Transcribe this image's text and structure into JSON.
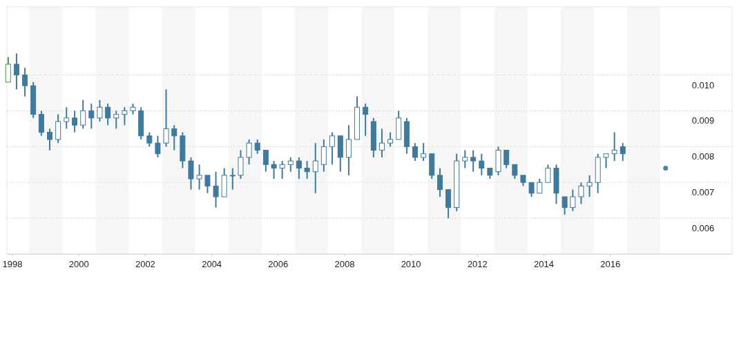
{
  "chart_data": {
    "type": "candlestick",
    "xlim": [
      "1998-05-01",
      "2020-03-01"
    ],
    "ylim": [
      0.005,
      0.0119
    ],
    "xticks": [
      {
        "value": "1998-07-01",
        "label": "1998"
      },
      {
        "value": "2000-07-01",
        "label": "2000"
      },
      {
        "value": "2002-07-01",
        "label": "2002"
      },
      {
        "value": "2004-07-01",
        "label": "2004"
      },
      {
        "value": "2006-07-01",
        "label": "2006"
      },
      {
        "value": "2008-07-01",
        "label": "2008"
      },
      {
        "value": "2010-07-01",
        "label": "2010"
      },
      {
        "value": "2012-07-01",
        "label": "2012"
      },
      {
        "value": "2014-07-01",
        "label": "2014"
      },
      {
        "value": "2016-07-01",
        "label": "2016"
      }
    ],
    "yticks": [
      0.006,
      0.007,
      0.008,
      0.009,
      {
        "value": 0.01,
        "label": "0.010"
      }
    ],
    "grid": "y",
    "marker": "circle",
    "bands": [
      {
        "axis": "x",
        "from": "1999-01-01",
        "to": "2000-01-01",
        "color": "#f6f6f6"
      },
      {
        "axis": "x",
        "from": "2001-01-01",
        "to": "2002-01-01",
        "color": "#f6f6f6"
      },
      {
        "axis": "x",
        "from": "2003-01-01",
        "to": "2004-01-01",
        "color": "#f6f6f6"
      },
      {
        "axis": "x",
        "from": "2005-01-01",
        "to": "2006-01-01",
        "color": "#f6f6f6"
      },
      {
        "axis": "x",
        "from": "2007-01-01",
        "to": "2008-01-01",
        "color": "#f6f6f6"
      },
      {
        "axis": "x",
        "from": "2009-01-01",
        "to": "2010-01-01",
        "color": "#f6f6f6"
      },
      {
        "axis": "x",
        "from": "2011-01-01",
        "to": "2012-01-01",
        "color": "#f6f6f6"
      },
      {
        "axis": "x",
        "from": "2013-01-01",
        "to": "2014-01-01",
        "color": "#f6f6f6"
      },
      {
        "axis": "x",
        "from": "2015-01-01",
        "to": "2016-01-01",
        "color": "#f6f6f6"
      },
      {
        "axis": "x",
        "from": "2017-01-01",
        "to": "2018-01-01",
        "color": "#f6f6f6"
      }
    ],
    "x": [
      "1998-05-15",
      "1998-08-15",
      "1998-11-15",
      "1999-02-15",
      "1999-05-15",
      "1999-08-15",
      "1999-11-15",
      "2000-02-15",
      "2000-05-15",
      "2000-08-15",
      "2000-11-15",
      "2001-02-15",
      "2001-05-15",
      "2001-08-15",
      "2001-11-15",
      "2002-02-15",
      "2002-05-15",
      "2002-08-15",
      "2002-11-15",
      "2003-02-15",
      "2003-05-15",
      "2003-08-15",
      "2003-11-15",
      "2004-02-15",
      "2004-05-15",
      "2004-08-15",
      "2004-11-15",
      "2005-02-15",
      "2005-05-15",
      "2005-08-15",
      "2005-11-15",
      "2006-02-15",
      "2006-05-15",
      "2006-08-15",
      "2006-11-15",
      "2007-02-15",
      "2007-05-15",
      "2007-08-15",
      "2007-11-15",
      "2008-02-15",
      "2008-05-15",
      "2008-08-15",
      "2008-11-15",
      "2009-02-15",
      "2009-05-15",
      "2009-08-15",
      "2009-11-15",
      "2010-02-15",
      "2010-05-15",
      "2010-08-15",
      "2010-11-15",
      "2011-02-15",
      "2011-05-15",
      "2011-08-15",
      "2011-11-15",
      "2012-02-15",
      "2012-05-15",
      "2012-08-15",
      "2012-11-15",
      "2013-02-15",
      "2013-05-15",
      "2013-08-15",
      "2013-11-15",
      "2014-02-15",
      "2014-05-15",
      "2014-08-15",
      "2014-11-15",
      "2015-02-15",
      "2015-05-15",
      "2015-08-15",
      "2015-11-15",
      "2016-02-15",
      "2016-05-15",
      "2016-08-15",
      "2016-11-15"
    ],
    "ohlc": [
      [
        0.0098,
        0.0105,
        0.0098,
        0.0103
      ],
      [
        0.0103,
        0.0106,
        0.0096,
        0.01
      ],
      [
        0.01,
        0.0102,
        0.0094,
        0.0097
      ],
      [
        0.0097,
        0.0098,
        0.0088,
        0.0089
      ],
      [
        0.0089,
        0.009,
        0.0083,
        0.0084
      ],
      [
        0.0084,
        0.0085,
        0.0079,
        0.0082
      ],
      [
        0.0082,
        0.0089,
        0.0081,
        0.0087
      ],
      [
        0.0087,
        0.0091,
        0.0085,
        0.0088
      ],
      [
        0.0088,
        0.009,
        0.0084,
        0.0086
      ],
      [
        0.0086,
        0.0093,
        0.0085,
        0.009
      ],
      [
        0.009,
        0.0092,
        0.0085,
        0.0088
      ],
      [
        0.0088,
        0.0093,
        0.0087,
        0.0091
      ],
      [
        0.0091,
        0.0092,
        0.0086,
        0.0088
      ],
      [
        0.0088,
        0.009,
        0.0085,
        0.0089
      ],
      [
        0.0089,
        0.0091,
        0.0086,
        0.009
      ],
      [
        0.009,
        0.0092,
        0.0089,
        0.0091
      ],
      [
        0.009,
        0.0091,
        0.0082,
        0.0083
      ],
      [
        0.0083,
        0.0084,
        0.008,
        0.0081
      ],
      [
        0.0081,
        0.0083,
        0.0077,
        0.0078
      ],
      [
        0.0081,
        0.0096,
        0.008,
        0.0085
      ],
      [
        0.0085,
        0.0086,
        0.0079,
        0.0083
      ],
      [
        0.0083,
        0.0084,
        0.0074,
        0.0076
      ],
      [
        0.0076,
        0.0077,
        0.0068,
        0.0071
      ],
      [
        0.0071,
        0.0075,
        0.0068,
        0.0072
      ],
      [
        0.0072,
        0.0072,
        0.0067,
        0.0069
      ],
      [
        0.0069,
        0.0073,
        0.0063,
        0.0066
      ],
      [
        0.0066,
        0.0074,
        0.0066,
        0.0072
      ],
      [
        0.0072,
        0.0074,
        0.0068,
        0.0072
      ],
      [
        0.0072,
        0.0079,
        0.0071,
        0.0077
      ],
      [
        0.0077,
        0.0082,
        0.0075,
        0.0081
      ],
      [
        0.0081,
        0.0082,
        0.0078,
        0.0079
      ],
      [
        0.0079,
        0.0079,
        0.0073,
        0.0075
      ],
      [
        0.0075,
        0.0076,
        0.0071,
        0.0074
      ],
      [
        0.0074,
        0.0076,
        0.0071,
        0.0075
      ],
      [
        0.0075,
        0.0077,
        0.0073,
        0.0076
      ],
      [
        0.0076,
        0.0077,
        0.0071,
        0.0074
      ],
      [
        0.0074,
        0.0076,
        0.0071,
        0.0073
      ],
      [
        0.0073,
        0.0081,
        0.0067,
        0.0076
      ],
      [
        0.0075,
        0.0082,
        0.0073,
        0.008
      ],
      [
        0.008,
        0.0084,
        0.0075,
        0.0083
      ],
      [
        0.0083,
        0.0083,
        0.0073,
        0.0077
      ],
      [
        0.0077,
        0.0086,
        0.0072,
        0.0082
      ],
      [
        0.0082,
        0.0094,
        0.0082,
        0.0091
      ],
      [
        0.0091,
        0.0092,
        0.0083,
        0.0089
      ],
      [
        0.0087,
        0.0088,
        0.0077,
        0.0079
      ],
      [
        0.0079,
        0.0085,
        0.0077,
        0.0081
      ],
      [
        0.0081,
        0.0084,
        0.008,
        0.0082
      ],
      [
        0.0082,
        0.009,
        0.0082,
        0.0088
      ],
      [
        0.0087,
        0.0088,
        0.0078,
        0.008
      ],
      [
        0.008,
        0.0081,
        0.0076,
        0.0077
      ],
      [
        0.0077,
        0.0081,
        0.0076,
        0.0078
      ],
      [
        0.0078,
        0.0078,
        0.0071,
        0.0072
      ],
      [
        0.0072,
        0.0074,
        0.0066,
        0.0068
      ],
      [
        0.0068,
        0.0068,
        0.006,
        0.0063
      ],
      [
        0.0063,
        0.0078,
        0.0062,
        0.0076
      ],
      [
        0.0076,
        0.0079,
        0.0074,
        0.0077
      ],
      [
        0.0077,
        0.0079,
        0.0073,
        0.0076
      ],
      [
        0.0076,
        0.0078,
        0.0072,
        0.0074
      ],
      [
        0.0074,
        0.0074,
        0.0071,
        0.0072
      ],
      [
        0.0073,
        0.008,
        0.0072,
        0.0079
      ],
      [
        0.0079,
        0.0079,
        0.0074,
        0.0075
      ],
      [
        0.0075,
        0.0075,
        0.0071,
        0.0072
      ],
      [
        0.0072,
        0.0072,
        0.0069,
        0.007
      ],
      [
        0.007,
        0.007,
        0.0066,
        0.0067
      ],
      [
        0.0067,
        0.0071,
        0.0067,
        0.007
      ],
      [
        0.007,
        0.0075,
        0.007,
        0.0074
      ],
      [
        0.0074,
        0.0075,
        0.0064,
        0.0067
      ],
      [
        0.0066,
        0.0066,
        0.0061,
        0.0063
      ],
      [
        0.0063,
        0.0068,
        0.0062,
        0.0066
      ],
      [
        0.0066,
        0.007,
        0.0064,
        0.0069
      ],
      [
        0.0069,
        0.0072,
        0.0066,
        0.007
      ],
      [
        0.007,
        0.0078,
        0.0067,
        0.0077
      ],
      [
        0.0077,
        0.0078,
        0.0074,
        0.0078
      ],
      [
        0.0078,
        0.0084,
        0.0076,
        0.0079
      ],
      [
        0.008,
        0.0081,
        0.0076,
        0.0078
      ]
    ],
    "colors": [
      "#3e9a4c",
      "#3f7a9c",
      "#3f7a9c",
      "#3f7a9c",
      "#3f7a9c",
      "#3f7a9c",
      "#3f7a9c",
      "#3f7a9c",
      "#3f7a9c",
      "#3f7a9c",
      "#3f7a9c",
      "#3f7a9c",
      "#3f7a9c",
      "#3f7a9c",
      "#3f7a9c",
      "#3f7a9c",
      "#3f7a9c",
      "#3f7a9c",
      "#3f7a9c",
      "#3f7a9c",
      "#3f7a9c",
      "#3f7a9c",
      "#3f7a9c",
      "#3f7a9c",
      "#3f7a9c",
      "#3f7a9c",
      "#3f7a9c",
      "#3f7a9c",
      "#3f7a9c",
      "#3f7a9c",
      "#3f7a9c",
      "#3f7a9c",
      "#3f7a9c",
      "#3f7a9c",
      "#3f7a9c",
      "#3f7a9c",
      "#3f7a9c",
      "#3f7a9c",
      "#3f7a9c",
      "#3f7a9c",
      "#3f7a9c",
      "#3f7a9c",
      "#3f7a9c",
      "#3f7a9c",
      "#3f7a9c",
      "#3f7a9c",
      "#3f7a9c",
      "#3f7a9c",
      "#3f7a9c",
      "#3f7a9c",
      "#3f7a9c",
      "#3f7a9c",
      "#3f7a9c",
      "#3f7a9c",
      "#3f7a9c",
      "#3f7a9c",
      "#3f7a9c",
      "#3f7a9c",
      "#3f7a9c",
      "#3f7a9c",
      "#3f7a9c",
      "#3f7a9c",
      "#3f7a9c",
      "#3f7a9c",
      "#3f7a9c",
      "#3f7a9c",
      "#3f7a9c",
      "#3f7a9c",
      "#3f7a9c",
      "#3f7a9c",
      "#3f7a9c",
      "#3f7a9c",
      "#3f7a9c",
      "#3f7a9c",
      "#3f7a9c"
    ],
    "series": [
      {
        "type": "scatter",
        "x": [
          "2018-03-01"
        ],
        "values": [
          0.0074
        ],
        "color": "#4a86a8"
      }
    ]
  }
}
